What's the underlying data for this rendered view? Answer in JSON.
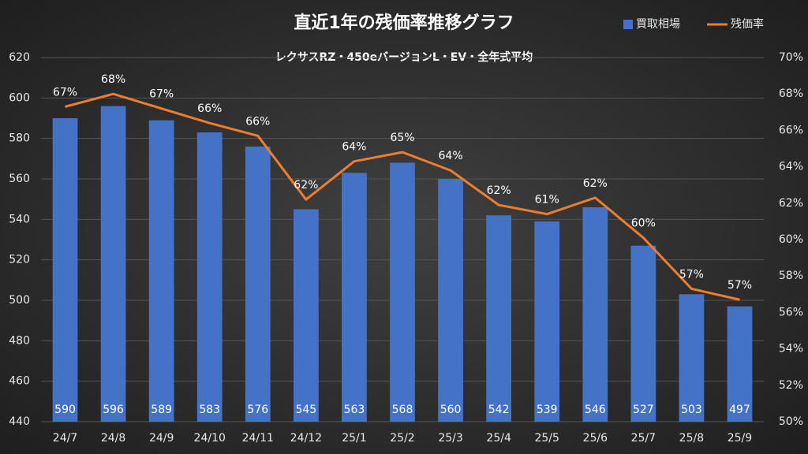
{
  "chart_data": {
    "type": "bar+line",
    "title": "直近1年の残価率推移グラフ",
    "subtitle": "レクサスRZ・450eバージョンL・EV・全年式平均",
    "categories": [
      "24/7",
      "24/8",
      "24/9",
      "24/10",
      "24/11",
      "24/12",
      "25/1",
      "25/2",
      "25/3",
      "25/4",
      "25/5",
      "25/6",
      "25/7",
      "25/8",
      "25/9"
    ],
    "series": [
      {
        "name": "買取相場",
        "color": "#4472c4",
        "type": "bar",
        "values": [
          590,
          596,
          589,
          583,
          576,
          545,
          563,
          568,
          560,
          542,
          539,
          546,
          527,
          503,
          497
        ]
      },
      {
        "name": "残価率",
        "color": "#ed7d31",
        "type": "line",
        "axis": "y2",
        "values": [
          67.3,
          68.0,
          67.2,
          66.4,
          65.7,
          62.2,
          64.3,
          64.8,
          63.8,
          61.9,
          61.4,
          62.3,
          60.1,
          57.3,
          56.7
        ],
        "value_labels": [
          "67%",
          "68%",
          "67%",
          "66%",
          "66%",
          "62%",
          "64%",
          "65%",
          "64%",
          "62%",
          "61%",
          "62%",
          "60%",
          "57%",
          "57%"
        ]
      }
    ],
    "ylim": [
      440,
      620
    ],
    "yticks": [
      440,
      460,
      480,
      500,
      520,
      540,
      560,
      580,
      600,
      620
    ],
    "y2lim": [
      50,
      70
    ],
    "y2ticks": [
      {
        "value": 50,
        "label": "50%"
      },
      {
        "value": 52,
        "label": "52%"
      },
      {
        "value": 54,
        "label": "54%"
      },
      {
        "value": 56,
        "label": "56%"
      },
      {
        "value": 58,
        "label": "58%"
      },
      {
        "value": 60,
        "label": "60%"
      },
      {
        "value": 62,
        "label": "62%"
      },
      {
        "value": 64,
        "label": "64%"
      },
      {
        "value": 66,
        "label": "66%"
      },
      {
        "value": 68,
        "label": "68%"
      },
      {
        "value": 70,
        "label": "70%"
      }
    ],
    "grid": true,
    "legend": "top-right"
  }
}
